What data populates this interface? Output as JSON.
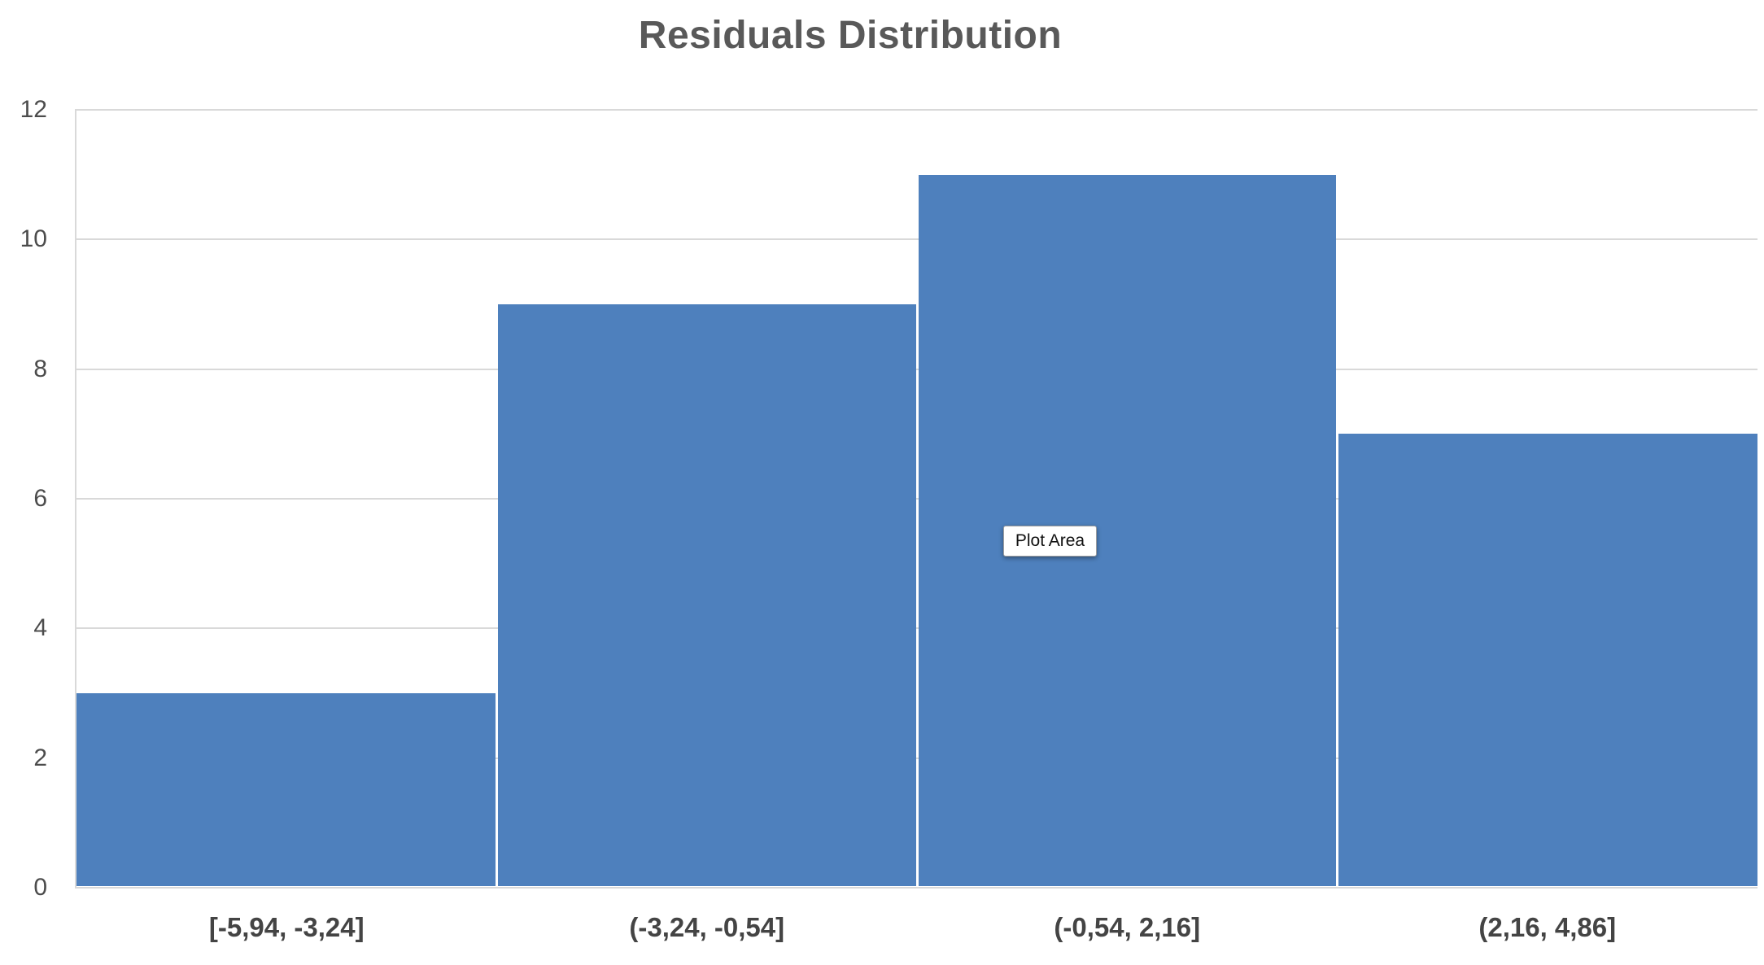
{
  "chart_data": {
    "type": "bar",
    "title": "Residuals Distribution",
    "categories": [
      "[-5,94, -3,24]",
      "(-3,24, -0,54]",
      "(-0,54, 2,16]",
      "(2,16, 4,86]"
    ],
    "values": [
      3,
      9,
      11,
      7
    ],
    "xlabel": "",
    "ylabel": "",
    "ylim": [
      0,
      12
    ],
    "yticks": [
      0,
      2,
      4,
      6,
      8,
      10,
      12
    ],
    "grid": true,
    "legend_position": "none",
    "bar_color": "#4e80bd",
    "gridline_color": "#d9d9d9",
    "axis_line_color": "#d9d9d9",
    "title_color": "#595959",
    "y_tick_color": "#4c4c4c",
    "x_tick_color": "#444444"
  },
  "overlay": {
    "tooltip_label": "Plot Area"
  }
}
